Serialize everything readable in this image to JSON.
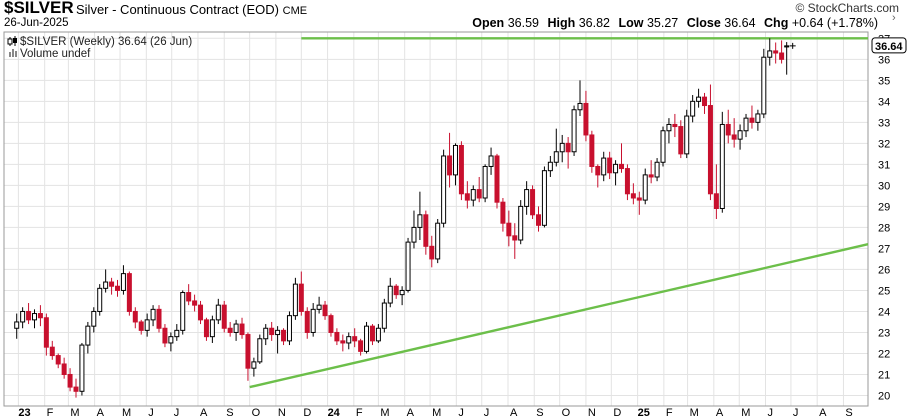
{
  "header": {
    "symbol": "$SILVER",
    "name": "Silver - Continuous Contract (EOD)",
    "exchange": "CME",
    "date": "26-Jun-2025",
    "brand": "© StockCharts.com",
    "ohlc": {
      "open_label": "Open",
      "open": "36.59",
      "high_label": "High",
      "high": "36.82",
      "low_label": "Low",
      "low": "35.27",
      "close_label": "Close",
      "close": "36.64",
      "chg_label": "Chg",
      "chg": "+0.64 (+1.78%)"
    }
  },
  "legend": {
    "series_label": "$SILVER (Weekly) 36.64 (26 Jun)",
    "volume_label": "Volume undef"
  },
  "chart_data": {
    "type": "candlestick",
    "y_ticks": [
      "20",
      "21",
      "22",
      "23",
      "24",
      "25",
      "26",
      "27",
      "28",
      "29",
      "30",
      "31",
      "32",
      "33",
      "34",
      "35",
      "36",
      "37"
    ],
    "ylim": [
      19.5,
      37.3
    ],
    "x_tick_labels": [
      "23",
      "F",
      "M",
      "A",
      "M",
      "J",
      "J",
      "A",
      "S",
      "O",
      "N",
      "D",
      "24",
      "F",
      "M",
      "A",
      "M",
      "J",
      "J",
      "A",
      "S",
      "O",
      "N",
      "D",
      "25",
      "F",
      "M",
      "A",
      "M",
      "J",
      "J",
      "A",
      "S"
    ],
    "x_tick_bold": [
      "23",
      "24",
      "25"
    ],
    "last_price": "36.64",
    "colors": {
      "up": "#ffffff",
      "down": "#c8102e",
      "outline": "#000000",
      "trendline": "#6cbf4a"
    },
    "trendlines": [
      {
        "kind": "resistance",
        "from": [
          "2023-12-01",
          37.0
        ],
        "to": [
          "2025-09-30",
          37.0
        ]
      },
      {
        "kind": "support",
        "from": [
          "2023-10-01",
          20.4
        ],
        "to": [
          "2025-09-30",
          27.2
        ]
      }
    ],
    "candles": [
      [
        "2022-12-30",
        23.2,
        23.9,
        22.7,
        23.5
      ],
      [
        "2023-01-06",
        23.5,
        24.2,
        23.2,
        24.0
      ],
      [
        "2023-01-13",
        24.0,
        24.4,
        23.4,
        23.6
      ],
      [
        "2023-01-20",
        23.6,
        24.1,
        23.2,
        23.9
      ],
      [
        "2023-01-27",
        23.9,
        24.3,
        23.3,
        23.7
      ],
      [
        "2023-02-03",
        23.7,
        23.9,
        21.9,
        22.3
      ],
      [
        "2023-02-10",
        22.3,
        22.6,
        21.7,
        21.9
      ],
      [
        "2023-02-17",
        21.9,
        22.0,
        21.3,
        21.5
      ],
      [
        "2023-02-24",
        21.5,
        21.8,
        20.8,
        21.0
      ],
      [
        "2023-03-03",
        21.0,
        21.3,
        20.2,
        20.4
      ],
      [
        "2023-03-10",
        20.4,
        20.8,
        19.9,
        20.2
      ],
      [
        "2023-03-17",
        20.2,
        22.5,
        20.0,
        22.4
      ],
      [
        "2023-03-24",
        22.4,
        23.5,
        22.0,
        23.3
      ],
      [
        "2023-03-31",
        23.3,
        24.2,
        23.0,
        24.0
      ],
      [
        "2023-04-07",
        24.0,
        25.3,
        23.8,
        25.1
      ],
      [
        "2023-04-14",
        25.1,
        26.0,
        24.9,
        25.4
      ],
      [
        "2023-04-21",
        25.4,
        25.6,
        24.8,
        25.2
      ],
      [
        "2023-04-28",
        25.2,
        25.5,
        24.7,
        25.0
      ],
      [
        "2023-05-05",
        25.0,
        26.2,
        24.8,
        25.8
      ],
      [
        "2023-05-12",
        25.8,
        25.9,
        23.8,
        24.0
      ],
      [
        "2023-05-19",
        24.0,
        24.2,
        23.2,
        23.5
      ],
      [
        "2023-05-26",
        23.5,
        23.6,
        22.9,
        23.1
      ],
      [
        "2023-06-02",
        23.1,
        23.9,
        22.8,
        23.6
      ],
      [
        "2023-06-09",
        23.6,
        24.3,
        23.3,
        24.1
      ],
      [
        "2023-06-16",
        24.1,
        24.3,
        23.0,
        23.2
      ],
      [
        "2023-06-23",
        23.2,
        23.4,
        22.3,
        22.5
      ],
      [
        "2023-06-30",
        22.5,
        23.0,
        22.1,
        22.8
      ],
      [
        "2023-07-07",
        22.8,
        23.4,
        22.6,
        23.1
      ],
      [
        "2023-07-14",
        23.1,
        25.0,
        22.9,
        24.9
      ],
      [
        "2023-07-21",
        24.9,
        25.3,
        24.3,
        24.5
      ],
      [
        "2023-07-28",
        24.5,
        24.8,
        24.0,
        24.3
      ],
      [
        "2023-08-04",
        24.3,
        24.5,
        23.4,
        23.6
      ],
      [
        "2023-08-11",
        23.6,
        23.7,
        22.6,
        22.8
      ],
      [
        "2023-08-18",
        22.8,
        23.8,
        22.5,
        23.6
      ],
      [
        "2023-08-25",
        23.6,
        24.6,
        23.4,
        24.3
      ],
      [
        "2023-09-01",
        24.3,
        24.5,
        23.0,
        23.2
      ],
      [
        "2023-09-08",
        23.2,
        23.5,
        22.8,
        23.0
      ],
      [
        "2023-09-15",
        23.0,
        23.6,
        22.6,
        23.4
      ],
      [
        "2023-09-22",
        23.4,
        23.7,
        22.7,
        22.9
      ],
      [
        "2023-09-29",
        22.9,
        23.0,
        20.7,
        21.3
      ],
      [
        "2023-10-06",
        21.3,
        21.8,
        20.9,
        21.6
      ],
      [
        "2023-10-13",
        21.6,
        22.9,
        21.5,
        22.7
      ],
      [
        "2023-10-20",
        22.7,
        23.4,
        22.4,
        23.2
      ],
      [
        "2023-10-27",
        23.2,
        23.5,
        22.6,
        22.9
      ],
      [
        "2023-11-03",
        22.9,
        23.3,
        22.0,
        23.1
      ],
      [
        "2023-11-10",
        23.1,
        23.2,
        22.4,
        22.6
      ],
      [
        "2023-11-17",
        22.6,
        24.0,
        22.4,
        23.8
      ],
      [
        "2023-11-24",
        23.8,
        25.6,
        23.6,
        25.3
      ],
      [
        "2023-12-01",
        25.3,
        25.9,
        23.8,
        24.0
      ],
      [
        "2023-12-08",
        24.0,
        24.2,
        22.7,
        23.0
      ],
      [
        "2023-12-15",
        23.0,
        24.4,
        22.8,
        24.1
      ],
      [
        "2023-12-22",
        24.1,
        24.7,
        23.9,
        24.3
      ],
      [
        "2023-12-29",
        24.3,
        24.5,
        23.6,
        23.8
      ],
      [
        "2024-01-05",
        23.8,
        23.9,
        22.8,
        23.0
      ],
      [
        "2024-01-12",
        23.0,
        23.2,
        22.4,
        22.6
      ],
      [
        "2024-01-19",
        22.6,
        22.9,
        22.1,
        22.5
      ],
      [
        "2024-01-26",
        22.5,
        23.0,
        22.2,
        22.8
      ],
      [
        "2024-02-02",
        22.8,
        23.2,
        22.3,
        22.6
      ],
      [
        "2024-02-09",
        22.6,
        22.7,
        21.9,
        22.1
      ],
      [
        "2024-02-16",
        22.1,
        23.5,
        22.0,
        23.3
      ],
      [
        "2024-02-23",
        23.3,
        23.4,
        22.4,
        22.6
      ],
      [
        "2024-03-01",
        22.6,
        23.4,
        22.5,
        23.2
      ],
      [
        "2024-03-08",
        23.2,
        24.6,
        23.0,
        24.4
      ],
      [
        "2024-03-15",
        24.4,
        25.6,
        24.2,
        25.2
      ],
      [
        "2024-03-22",
        25.2,
        25.3,
        24.6,
        24.8
      ],
      [
        "2024-03-29",
        24.8,
        25.2,
        24.3,
        25.0
      ],
      [
        "2024-04-05",
        25.0,
        27.5,
        24.9,
        27.3
      ],
      [
        "2024-04-12",
        27.3,
        28.8,
        27.0,
        28.0
      ],
      [
        "2024-04-19",
        28.0,
        29.7,
        27.4,
        28.6
      ],
      [
        "2024-04-26",
        28.6,
        28.8,
        26.7,
        27.1
      ],
      [
        "2024-05-03",
        27.1,
        27.6,
        26.1,
        26.5
      ],
      [
        "2024-05-10",
        26.5,
        28.4,
        26.3,
        28.2
      ],
      [
        "2024-05-17",
        28.2,
        31.7,
        28.0,
        31.4
      ],
      [
        "2024-05-24",
        31.4,
        32.5,
        29.9,
        30.5
      ],
      [
        "2024-05-31",
        30.5,
        32.0,
        30.0,
        31.9
      ],
      [
        "2024-06-07",
        31.9,
        32.1,
        29.3,
        29.6
      ],
      [
        "2024-06-14",
        29.6,
        30.2,
        28.9,
        29.3
      ],
      [
        "2024-06-21",
        29.3,
        30.0,
        29.0,
        29.8
      ],
      [
        "2024-06-28",
        29.8,
        30.4,
        29.2,
        29.4
      ],
      [
        "2024-07-05",
        29.4,
        31.0,
        29.2,
        30.9
      ],
      [
        "2024-07-12",
        30.9,
        31.8,
        30.5,
        31.4
      ],
      [
        "2024-07-19",
        31.4,
        31.5,
        28.9,
        29.2
      ],
      [
        "2024-07-26",
        29.2,
        29.4,
        27.8,
        28.2
      ],
      [
        "2024-08-02",
        28.2,
        28.8,
        27.1,
        27.6
      ],
      [
        "2024-08-09",
        27.6,
        28.2,
        26.5,
        27.4
      ],
      [
        "2024-08-16",
        27.4,
        29.3,
        27.2,
        29.0
      ],
      [
        "2024-08-23",
        29.0,
        30.2,
        28.6,
        29.8
      ],
      [
        "2024-08-30",
        29.8,
        30.0,
        28.4,
        28.6
      ],
      [
        "2024-09-06",
        28.6,
        29.0,
        27.8,
        28.1
      ],
      [
        "2024-09-13",
        28.1,
        30.9,
        28.0,
        30.7
      ],
      [
        "2024-09-20",
        30.7,
        31.4,
        30.4,
        31.1
      ],
      [
        "2024-09-27",
        31.1,
        32.7,
        30.9,
        31.6
      ],
      [
        "2024-10-04",
        31.6,
        32.4,
        31.1,
        32.0
      ],
      [
        "2024-10-11",
        32.0,
        32.3,
        30.8,
        31.6
      ],
      [
        "2024-10-18",
        31.6,
        33.8,
        31.4,
        33.6
      ],
      [
        "2024-10-25",
        33.6,
        35.0,
        33.3,
        33.9
      ],
      [
        "2024-11-01",
        33.9,
        34.5,
        32.1,
        32.4
      ],
      [
        "2024-11-08",
        32.4,
        32.6,
        30.6,
        30.9
      ],
      [
        "2024-11-15",
        30.9,
        31.0,
        29.9,
        30.5
      ],
      [
        "2024-11-22",
        30.5,
        31.6,
        30.2,
        31.3
      ],
      [
        "2024-11-29",
        31.3,
        31.6,
        30.3,
        30.6
      ],
      [
        "2024-12-06",
        30.6,
        31.2,
        30.0,
        31.0
      ],
      [
        "2024-12-13",
        31.0,
        32.0,
        30.6,
        30.8
      ],
      [
        "2024-12-20",
        30.8,
        31.0,
        29.3,
        29.6
      ],
      [
        "2024-12-27",
        29.6,
        30.1,
        29.1,
        29.4
      ],
      [
        "2025-01-03",
        29.4,
        29.7,
        28.6,
        29.3
      ],
      [
        "2025-01-10",
        29.3,
        30.8,
        29.1,
        30.5
      ],
      [
        "2025-01-17",
        30.5,
        31.2,
        30.1,
        30.4
      ],
      [
        "2025-01-24",
        30.4,
        31.3,
        30.2,
        31.1
      ],
      [
        "2025-01-31",
        31.1,
        32.8,
        30.9,
        32.6
      ],
      [
        "2025-02-07",
        32.6,
        33.2,
        32.0,
        32.9
      ],
      [
        "2025-02-14",
        32.9,
        33.4,
        32.3,
        32.8
      ],
      [
        "2025-02-21",
        32.8,
        33.1,
        31.3,
        31.5
      ],
      [
        "2025-02-28",
        31.5,
        33.6,
        31.3,
        33.3
      ],
      [
        "2025-03-07",
        33.3,
        34.3,
        33.0,
        34.0
      ],
      [
        "2025-03-14",
        34.0,
        34.6,
        33.7,
        34.2
      ],
      [
        "2025-03-21",
        34.2,
        34.4,
        33.4,
        33.8
      ],
      [
        "2025-03-28",
        33.8,
        34.8,
        29.3,
        29.6
      ],
      [
        "2025-04-04",
        29.6,
        31.0,
        28.4,
        28.9
      ],
      [
        "2025-04-11",
        28.9,
        33.5,
        28.7,
        32.9
      ],
      [
        "2025-04-18",
        32.9,
        33.6,
        32.0,
        32.4
      ],
      [
        "2025-04-25",
        32.4,
        33.2,
        31.8,
        32.2
      ],
      [
        "2025-05-02",
        32.2,
        32.9,
        31.7,
        32.6
      ],
      [
        "2025-05-09",
        32.6,
        33.4,
        32.3,
        33.2
      ],
      [
        "2025-05-16",
        33.2,
        33.8,
        32.7,
        33.0
      ],
      [
        "2025-05-23",
        33.0,
        33.6,
        32.6,
        33.4
      ],
      [
        "2025-05-30",
        33.4,
        36.5,
        33.2,
        36.1
      ],
      [
        "2025-06-06",
        36.1,
        37.0,
        35.7,
        36.4
      ],
      [
        "2025-06-13",
        36.4,
        36.8,
        35.8,
        36.3
      ],
      [
        "2025-06-20",
        36.3,
        36.9,
        35.8,
        36.0
      ],
      [
        "2025-06-26",
        36.59,
        36.82,
        35.27,
        36.64
      ]
    ]
  }
}
